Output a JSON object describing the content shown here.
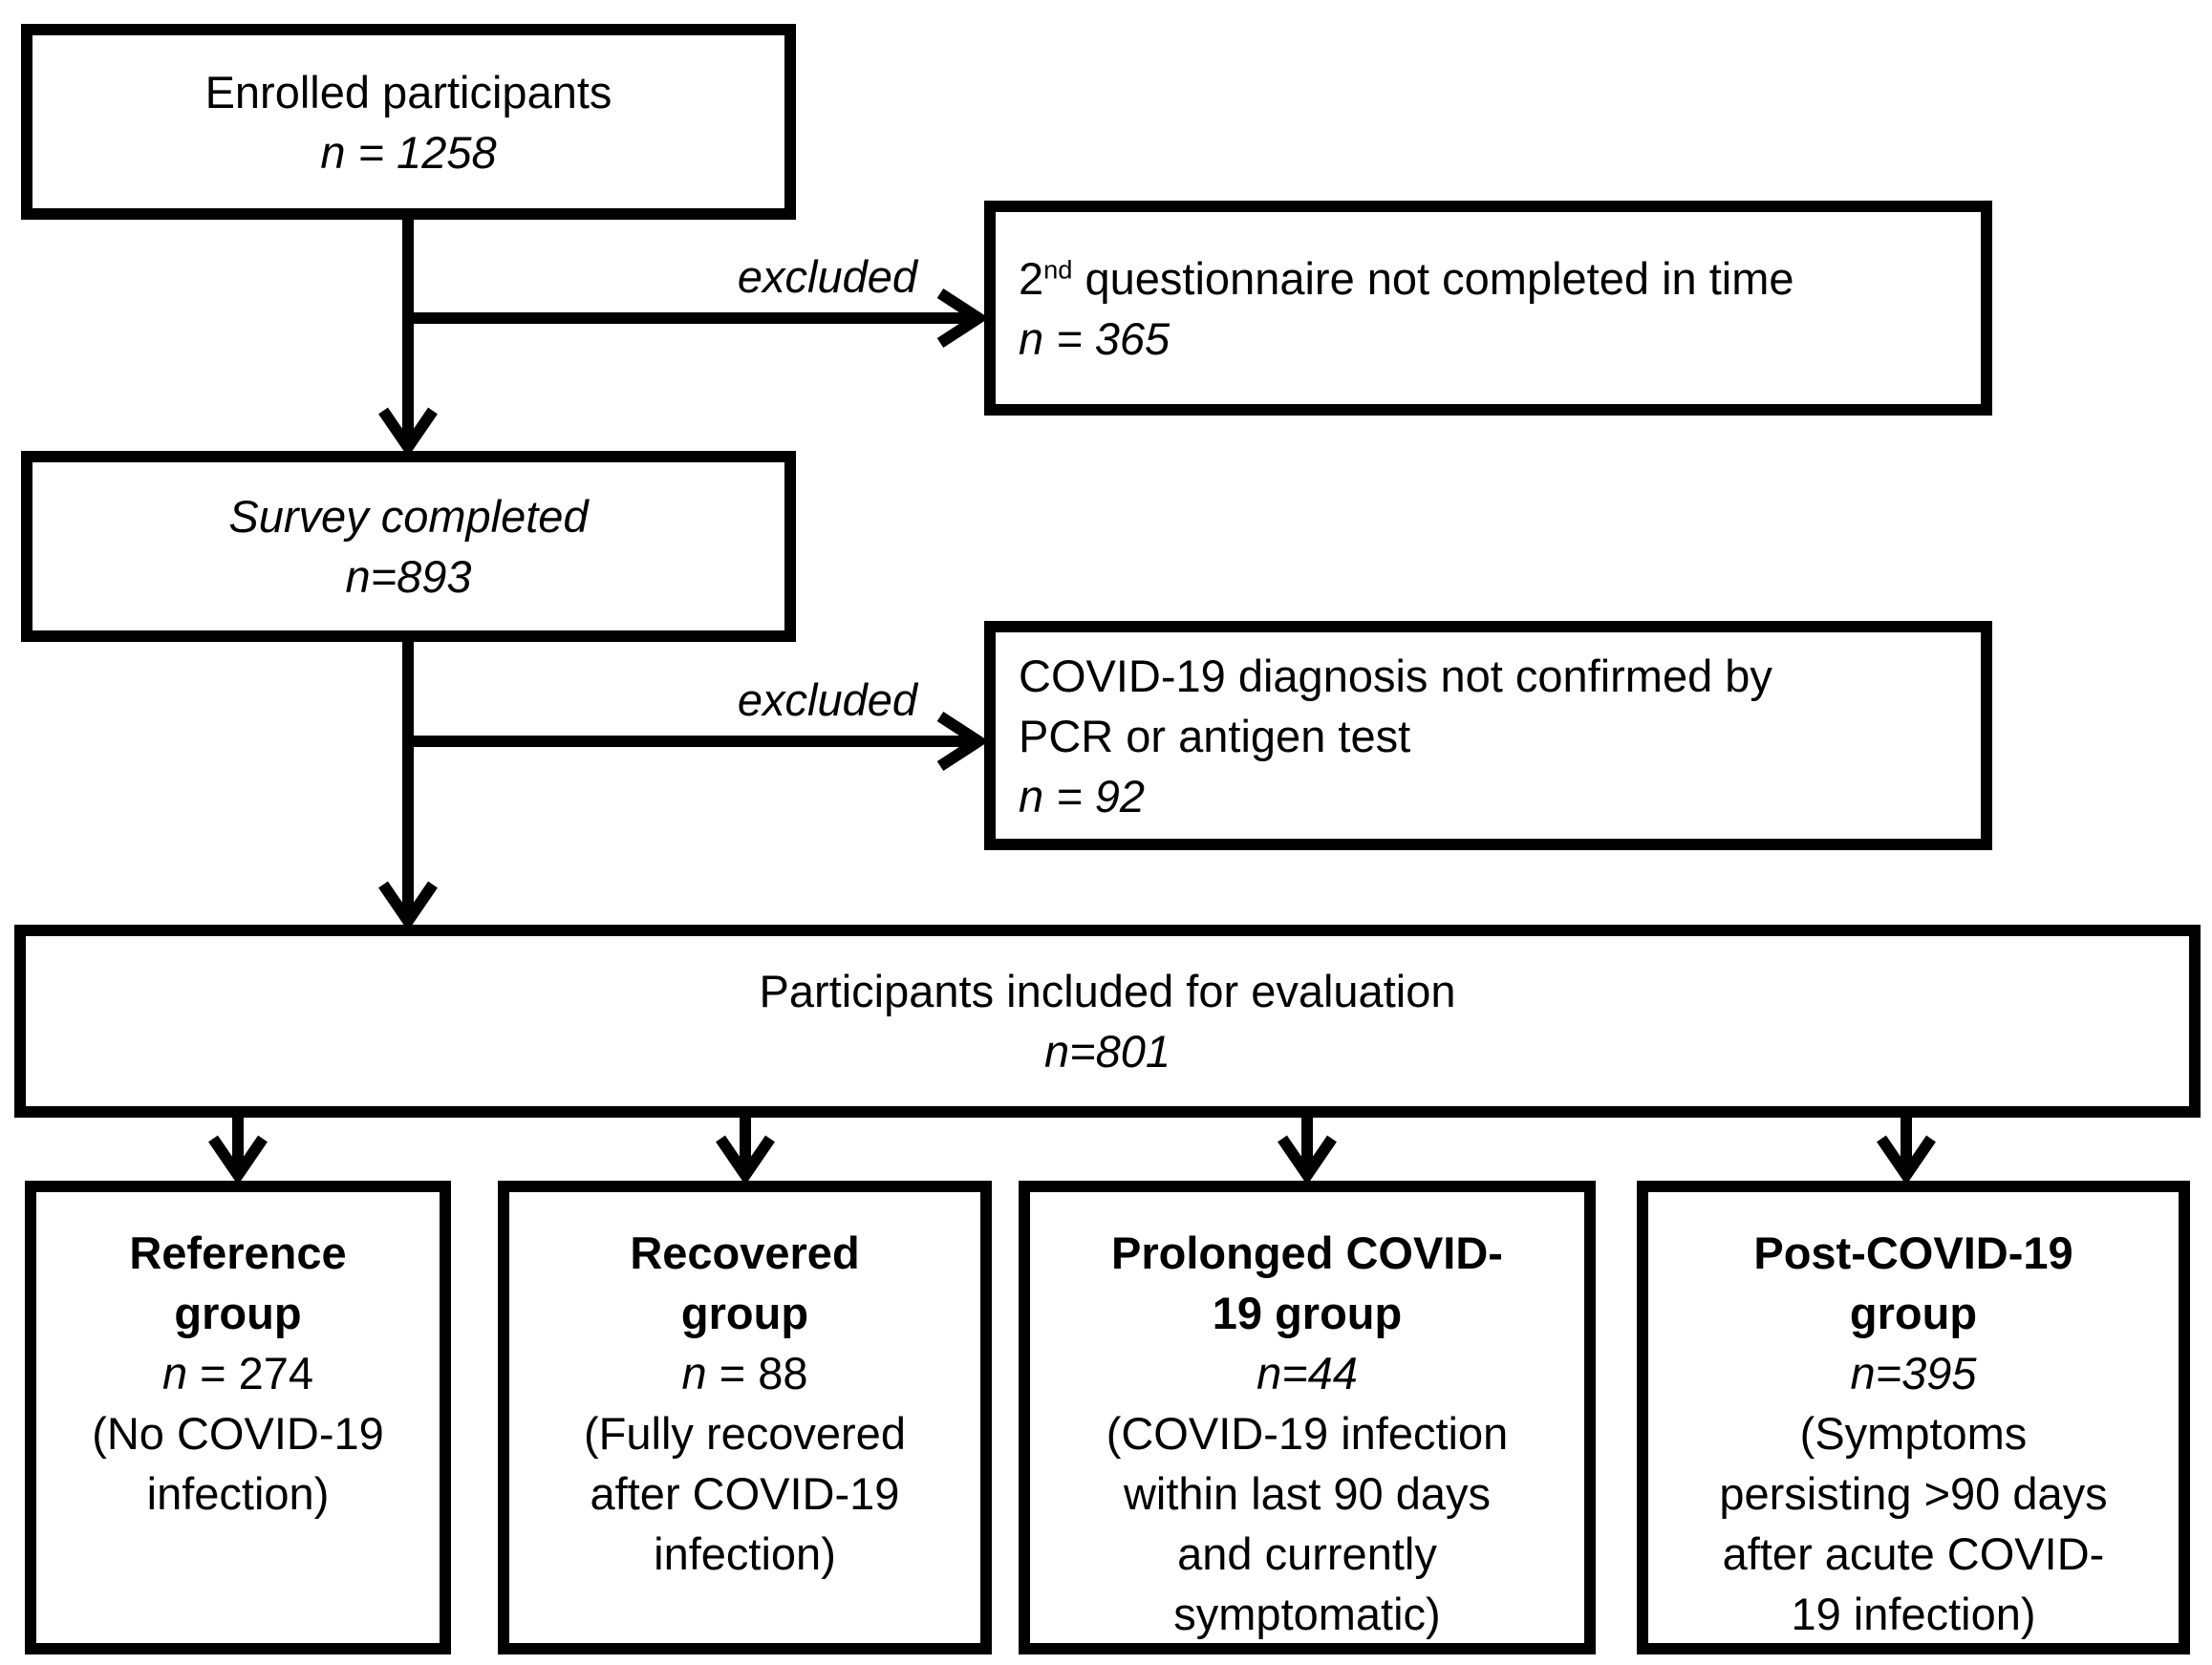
{
  "diagram": {
    "background_color": "#ffffff",
    "line_color": "#000000",
    "excluded_label_1": "excluded",
    "excluded_label_2": "excluded",
    "boxes": {
      "enrolled": {
        "lines": [
          [
            {
              "t": "Enrolled participants"
            }
          ],
          [
            {
              "t": "n = 1258",
              "i": true
            }
          ]
        ]
      },
      "excluded1": {
        "lines": [
          [
            {
              "t": "2"
            },
            {
              "t": "nd",
              "sup": true
            },
            {
              "t": " questionnaire not completed in time"
            }
          ],
          [
            {
              "t": "n = 365",
              "i": true
            }
          ]
        ]
      },
      "survey": {
        "lines": [
          [
            {
              "t": "Survey completed",
              "i": true
            }
          ],
          [
            {
              "t": "n=893",
              "i": true
            }
          ]
        ]
      },
      "excluded2": {
        "lines": [
          [
            {
              "t": "COVID-19 diagnosis not confirmed by"
            }
          ],
          [
            {
              "t": "PCR or antigen test"
            }
          ],
          [
            {
              "t": "n = 92",
              "i": true
            }
          ]
        ]
      },
      "included": {
        "lines": [
          [
            {
              "t": "Participants included for evaluation"
            }
          ],
          [
            {
              "t": "n=801",
              "i": true
            }
          ]
        ]
      },
      "reference": {
        "lines": [
          [
            {
              "t": "Reference",
              "b": true
            }
          ],
          [
            {
              "t": "group",
              "b": true
            }
          ],
          [
            {
              "t": "n",
              "i": true
            },
            {
              "t": " = 274"
            }
          ],
          [
            {
              "t": "(No COVID-19"
            }
          ],
          [
            {
              "t": "infection)"
            }
          ]
        ]
      },
      "recovered": {
        "lines": [
          [
            {
              "t": "Recovered",
              "b": true
            }
          ],
          [
            {
              "t": "group",
              "b": true
            }
          ],
          [
            {
              "t": "n",
              "i": true
            },
            {
              "t": " = 88"
            }
          ],
          [
            {
              "t": "(Fully recovered"
            }
          ],
          [
            {
              "t": "after COVID-19"
            }
          ],
          [
            {
              "t": "infection)"
            }
          ]
        ]
      },
      "prolonged": {
        "lines": [
          [
            {
              "t": "Prolonged COVID-",
              "b": true
            }
          ],
          [
            {
              "t": "19 group",
              "b": true
            }
          ],
          [
            {
              "t": "n=44",
              "i": true
            }
          ],
          [
            {
              "t": "(COVID-19 infection"
            }
          ],
          [
            {
              "t": "within last 90 days"
            }
          ],
          [
            {
              "t": "and currently"
            }
          ],
          [
            {
              "t": "symptomatic)"
            }
          ]
        ]
      },
      "post": {
        "lines": [
          [
            {
              "t": "Post-COVID-19",
              "b": true
            }
          ],
          [
            {
              "t": "group",
              "b": true
            }
          ],
          [
            {
              "t": "n=395",
              "i": true
            }
          ],
          [
            {
              "t": "(Symptoms"
            }
          ],
          [
            {
              "t": "persisting >90 days"
            }
          ],
          [
            {
              "t": "after acute COVID-"
            }
          ],
          [
            {
              "t": "19 infection)"
            }
          ]
        ]
      }
    }
  }
}
